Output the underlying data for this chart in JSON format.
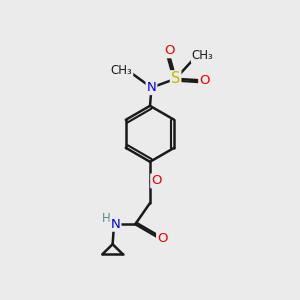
{
  "bg_color": "#ebebeb",
  "bond_color": "#1a1a1a",
  "bond_width": 1.8,
  "dbo": 0.055,
  "atom_colors": {
    "N": "#0000ee",
    "O": "#ee0000",
    "S": "#bbbb00",
    "H": "#558888",
    "C": "#1a1a1a"
  },
  "font_size": 9.5,
  "fig_size": [
    3.0,
    3.0
  ],
  "dpi": 100
}
